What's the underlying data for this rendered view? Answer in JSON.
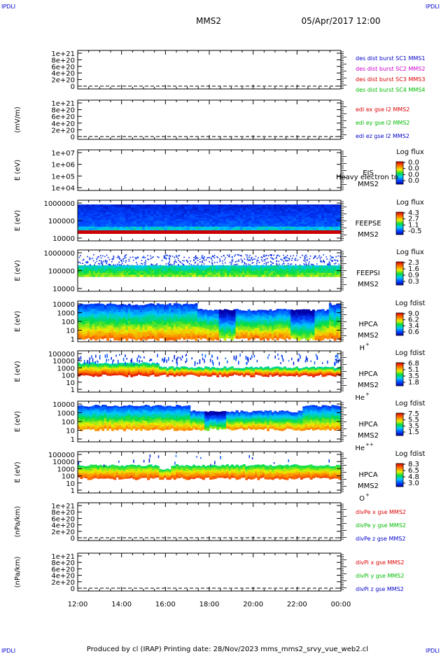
{
  "corner_label": "IPDLI",
  "header": {
    "spacecraft": "MMS2",
    "date": "05/Apr/2017 12:00"
  },
  "footer": "Produced by cl (IRAP)   Printing date: 28/Nov/2023   mms_mms2_srvy_vue_web2.cl",
  "time_axis": {
    "labels": [
      "12:00",
      "14:00",
      "16:00",
      "18:00",
      "20:00",
      "22:00",
      "00:00"
    ]
  },
  "chart_data": [
    {
      "type": "line",
      "ylabel": "",
      "ytick_labels": [
        "1e+21",
        "8e+20",
        "6e+20",
        "4e+20",
        "2e+20",
        "0"
      ],
      "ylim": [
        0,
        1e+21
      ],
      "series": [
        {
          "name": "des dist burst SC1 MMS1",
          "color": "#0000cc",
          "values": [
            0,
            0
          ]
        },
        {
          "name": "des dist burst SC2 MMS2",
          "color": "#cc00cc",
          "values": [
            0,
            0
          ]
        },
        {
          "name": "des dist burst SC3 MMS3",
          "color": "#dd0000",
          "values": [
            0,
            0
          ]
        },
        {
          "name": "des dist burst SC4 MMS4",
          "color": "#00bb00",
          "values": [
            0,
            0
          ]
        }
      ]
    },
    {
      "type": "line",
      "ylabel": "(mV/m)",
      "ytick_labels": [
        "1e+21",
        "8e+20",
        "6e+20",
        "4e+20",
        "2e+20",
        "0"
      ],
      "ylim": [
        0,
        1e+21
      ],
      "series": [
        {
          "name": "edi ex gse l2 MMS2",
          "color": "#dd0000",
          "values": [
            0,
            0
          ]
        },
        {
          "name": "edi ey gse l2 MMS2",
          "color": "#00bb00",
          "values": [
            0,
            0
          ]
        },
        {
          "name": "edi ez gse l2 MMS2",
          "color": "#0000cc",
          "values": [
            0,
            0
          ]
        }
      ]
    },
    {
      "type": "heatmap",
      "ylabel": "E (eV)",
      "ytick_labels": [
        "1e+07",
        "1e+06",
        "1e+05",
        "1e+04"
      ],
      "ylim": [
        10000.0,
        10000000.0
      ],
      "instrument": "EIS",
      "instrument_note": "Heavy electron to",
      "spacecraft": "MMS2",
      "colorbar": {
        "title": "Log flux",
        "ticks": [
          "0.0",
          "0.0",
          "0.0",
          "0.0"
        ]
      },
      "data": "empty"
    },
    {
      "type": "heatmap",
      "ylabel": "E (eV)",
      "ytick_labels": [
        "1000000",
        "100000",
        "10000"
      ],
      "ylim": [
        10000,
        1000000
      ],
      "instrument": "FEEPSE",
      "spacecraft": "MMS2",
      "colorbar": {
        "title": "Log flux",
        "ticks": [
          "4.3",
          "2.7",
          "1.1",
          "-0.5"
        ]
      }
    },
    {
      "type": "heatmap",
      "ylabel": "E (eV)",
      "ytick_labels": [
        "1000000",
        "100000",
        "10000"
      ],
      "ylim": [
        10000,
        1000000
      ],
      "instrument": "FEEPSI",
      "spacecraft": "MMS2",
      "colorbar": {
        "title": "Log flux",
        "ticks": [
          "2.3",
          "1.6",
          "0.9",
          "0.3"
        ]
      }
    },
    {
      "type": "heatmap",
      "ylabel": "E (eV)",
      "ytick_labels": [
        "10000",
        "1000",
        "100",
        "10",
        "1"
      ],
      "ylim": [
        1,
        30000
      ],
      "instrument": "HPCA",
      "spacecraft": "MMS2",
      "species": "H",
      "species_charge": "+",
      "colorbar": {
        "title": "Log fdist",
        "ticks": [
          "9.0",
          "6.2",
          "3.4",
          "0.6"
        ]
      }
    },
    {
      "type": "heatmap",
      "ylabel": "E (eV)",
      "ytick_labels": [
        "100000",
        "10000",
        "1000",
        "100",
        "10",
        "1"
      ],
      "ylim": [
        1,
        100000
      ],
      "instrument": "HPCA",
      "spacecraft": "MMS2",
      "species": "He",
      "species_charge": "+",
      "colorbar": {
        "title": "Log fdist",
        "ticks": [
          "6.8",
          "5.1",
          "3.5",
          "1.8"
        ]
      }
    },
    {
      "type": "heatmap",
      "ylabel": "E (eV)",
      "ytick_labels": [
        "10000",
        "1000",
        "100",
        "10",
        "1"
      ],
      "ylim": [
        1,
        30000
      ],
      "instrument": "HPCA",
      "spacecraft": "MMS2",
      "species": "He",
      "species_charge": "++",
      "colorbar": {
        "title": "Log fdist",
        "ticks": [
          "7.5",
          "5.5",
          "3.5",
          "1.5"
        ]
      }
    },
    {
      "type": "heatmap",
      "ylabel": "E (eV)",
      "ytick_labels": [
        "100000",
        "10000",
        "1000",
        "100",
        "10",
        "1"
      ],
      "ylim": [
        1,
        100000
      ],
      "instrument": "HPCA",
      "spacecraft": "MMS2",
      "species": "O",
      "species_charge": "+",
      "colorbar": {
        "title": "Log fdist",
        "ticks": [
          "8.3",
          "6.5",
          "4.8",
          "3.0"
        ]
      }
    },
    {
      "type": "line",
      "ylabel": "(nPa/km)",
      "ytick_labels": [
        "1e+21",
        "8e+20",
        "6e+20",
        "4e+20",
        "2e+20",
        "0"
      ],
      "ylim": [
        0,
        1e+21
      ],
      "series": [
        {
          "name": "divPe x gse MMS2",
          "color": "#dd0000",
          "values": [
            0,
            0
          ]
        },
        {
          "name": "divPe y gse MMS2",
          "color": "#00bb00",
          "values": [
            0,
            0
          ]
        },
        {
          "name": "divPe z gse MMS2",
          "color": "#0000cc",
          "values": [
            0,
            0
          ]
        }
      ]
    },
    {
      "type": "line",
      "ylabel": "(nPa/km)",
      "ytick_labels": [
        "1e+21",
        "8e+20",
        "6e+20",
        "4e+20",
        "2e+20",
        "0"
      ],
      "ylim": [
        0,
        1e+21
      ],
      "series": [
        {
          "name": "divPi x gse MMS2",
          "color": "#dd0000",
          "values": [
            0,
            0
          ]
        },
        {
          "name": "divPi y gse MMS2",
          "color": "#00bb00",
          "values": [
            0,
            0
          ]
        },
        {
          "name": "divPi z gse MMS2",
          "color": "#0000cc",
          "values": [
            0,
            0
          ]
        }
      ]
    }
  ]
}
